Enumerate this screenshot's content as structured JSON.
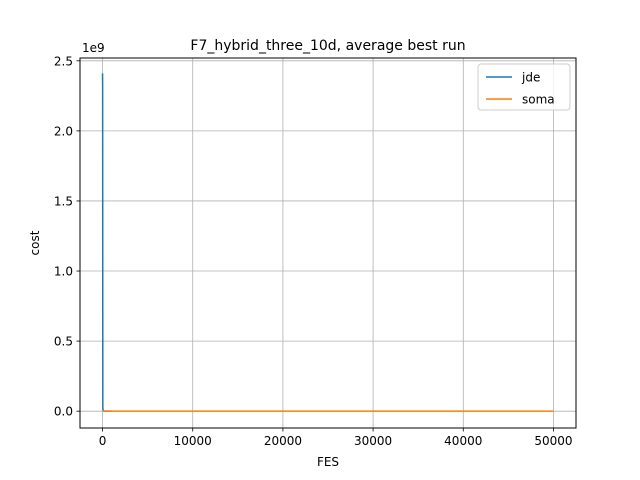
{
  "chart_data": {
    "type": "line",
    "title": "F7_hybrid_three_10d, average best run",
    "xlabel": "FES",
    "ylabel": "cost",
    "y_offset_label": "1e9",
    "xlim": [
      -2500,
      52500
    ],
    "ylim": [
      -120000000,
      2520000000
    ],
    "xticks": [
      0,
      10000,
      20000,
      30000,
      40000,
      50000
    ],
    "xtick_labels": [
      "0",
      "10000",
      "20000",
      "30000",
      "40000",
      "50000"
    ],
    "yticks": [
      0,
      500000000,
      1000000000,
      1500000000,
      2000000000,
      2500000000
    ],
    "ytick_labels": [
      "0.0",
      "0.5",
      "1.0",
      "1.5",
      "2.0",
      "2.5"
    ],
    "grid": true,
    "legend_position": "top-right",
    "series": [
      {
        "name": "jde",
        "color": "#1f77b4",
        "x": [
          0,
          10,
          30,
          60,
          100,
          200,
          500,
          1000
        ],
        "y": [
          2410000000,
          2300000000,
          30000000,
          5000000,
          2000000,
          1000000,
          500000,
          200000
        ]
      },
      {
        "name": "soma",
        "color": "#ff7f0e",
        "x": [
          0,
          100,
          1000,
          5000,
          10000,
          20000,
          30000,
          40000,
          50000
        ],
        "y": [
          1000000,
          500000,
          300000,
          200000,
          150000,
          100000,
          80000,
          60000,
          50000
        ]
      }
    ]
  }
}
